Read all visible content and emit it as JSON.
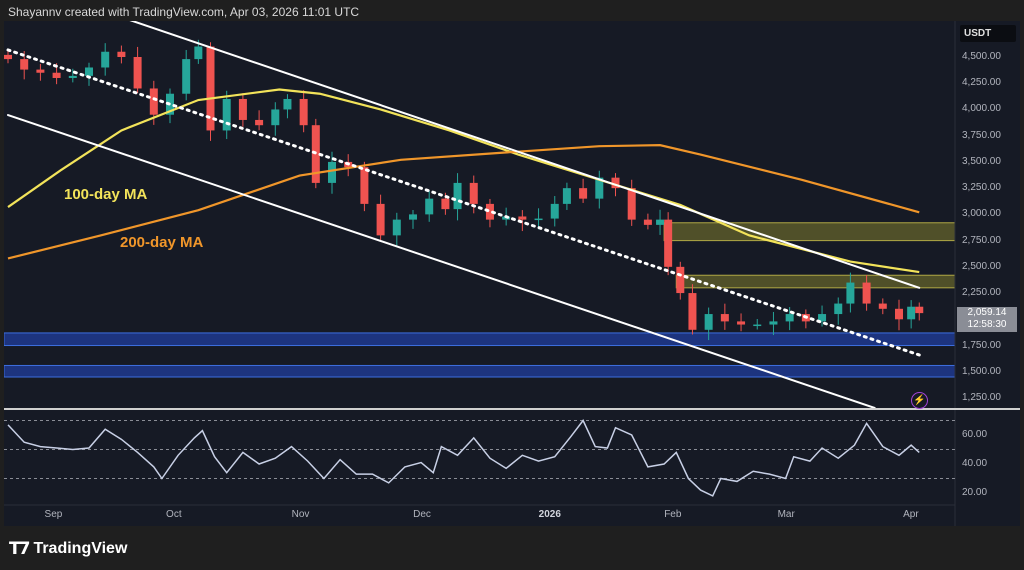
{
  "header": {
    "text": "Shayannv created with TradingView.com, Apr 03, 2026 11:01 UTC"
  },
  "footer": {
    "brand": "TradingView"
  },
  "colors": {
    "background": "#161a25",
    "up": "#26a69a",
    "down": "#ef5350",
    "ma100": "#f2e35a",
    "ma200": "#f0962a",
    "resistance_zone": "#5b5a2a",
    "support_zone": "#1f3a8f",
    "rsi": "#c8d0e6"
  },
  "chart_data": [
    {
      "type": "candlestick",
      "currency": "USDT",
      "last_price": "2,059.14",
      "countdown": "12:58:30",
      "ylim": [
        1150,
        4850
      ],
      "y_ticks": [
        "4,500.00",
        "4,250.00",
        "4,000.00",
        "3,750.00",
        "3,500.00",
        "3,250.00",
        "3,000.00",
        "2,750.00",
        "2,500.00",
        "2,250.00",
        "1,750.00",
        "1,500.00",
        "1,250.00"
      ],
      "y_tick_values": [
        4500,
        4250,
        4000,
        3750,
        3500,
        3250,
        3000,
        2750,
        2500,
        2250,
        1750,
        1500,
        1250
      ],
      "x_ticks": [
        {
          "label": "Sep",
          "date": "2025-09-01"
        },
        {
          "label": "Oct",
          "date": "2025-10-01"
        },
        {
          "label": "Nov",
          "date": "2025-11-01"
        },
        {
          "label": "Dec",
          "date": "2025-12-01"
        },
        {
          "label": "2026",
          "date": "2026-01-01"
        },
        {
          "label": "Feb",
          "date": "2026-02-01"
        },
        {
          "label": "Mar",
          "date": "2026-03-01"
        },
        {
          "label": "Apr",
          "date": "2026-04-01"
        }
      ],
      "xlim": [
        "2025-08-20",
        "2026-04-11"
      ],
      "closes": [
        [
          "2025-08-21",
          4480
        ],
        [
          "2025-08-25",
          4380
        ],
        [
          "2025-08-29",
          4350
        ],
        [
          "2025-09-02",
          4300
        ],
        [
          "2025-09-06",
          4320
        ],
        [
          "2025-09-10",
          4400
        ],
        [
          "2025-09-14",
          4550
        ],
        [
          "2025-09-18",
          4500
        ],
        [
          "2025-09-22",
          4200
        ],
        [
          "2025-09-26",
          3950
        ],
        [
          "2025-09-30",
          4150
        ],
        [
          "2025-10-04",
          4480
        ],
        [
          "2025-10-07",
          4600
        ],
        [
          "2025-10-10",
          3800
        ],
        [
          "2025-10-14",
          4100
        ],
        [
          "2025-10-18",
          3900
        ],
        [
          "2025-10-22",
          3850
        ],
        [
          "2025-10-26",
          4000
        ],
        [
          "2025-10-29",
          4100
        ],
        [
          "2025-11-02",
          3850
        ],
        [
          "2025-11-05",
          3300
        ],
        [
          "2025-11-09",
          3500
        ],
        [
          "2025-11-13",
          3450
        ],
        [
          "2025-11-17",
          3100
        ],
        [
          "2025-11-21",
          2800
        ],
        [
          "2025-11-25",
          2950
        ],
        [
          "2025-11-29",
          3000
        ],
        [
          "2025-12-03",
          3150
        ],
        [
          "2025-12-07",
          3050
        ],
        [
          "2025-12-10",
          3300
        ],
        [
          "2025-12-14",
          3100
        ],
        [
          "2025-12-18",
          2950
        ],
        [
          "2025-12-22",
          2980
        ],
        [
          "2025-12-26",
          2950
        ],
        [
          "2025-12-30",
          2960
        ],
        [
          "2026-01-03",
          3100
        ],
        [
          "2026-01-06",
          3250
        ],
        [
          "2026-01-10",
          3150
        ],
        [
          "2026-01-14",
          3350
        ],
        [
          "2026-01-18",
          3250
        ],
        [
          "2026-01-22",
          2950
        ],
        [
          "2026-01-26",
          2900
        ],
        [
          "2026-01-29",
          2950
        ],
        [
          "2026-01-31",
          2500
        ],
        [
          "2026-02-03",
          2250
        ],
        [
          "2026-02-06",
          1900
        ],
        [
          "2026-02-10",
          2050
        ],
        [
          "2026-02-14",
          1980
        ],
        [
          "2026-02-18",
          1950
        ],
        [
          "2026-02-22",
          1950
        ],
        [
          "2026-02-26",
          1980
        ],
        [
          "2026-03-02",
          2050
        ],
        [
          "2026-03-06",
          1980
        ],
        [
          "2026-03-10",
          2050
        ],
        [
          "2026-03-14",
          2150
        ],
        [
          "2026-03-17",
          2350
        ],
        [
          "2026-03-21",
          2150
        ],
        [
          "2026-03-25",
          2100
        ],
        [
          "2026-03-29",
          2000
        ],
        [
          "2026-04-01",
          2120
        ],
        [
          "2026-04-03",
          2059
        ]
      ],
      "moving_averages": [
        {
          "name": "100-day MA",
          "color": "#f2e35a",
          "points": [
            [
              "2025-08-21",
              3070
            ],
            [
              "2025-09-03",
              3420
            ],
            [
              "2025-09-18",
              3800
            ],
            [
              "2025-10-07",
              4090
            ],
            [
              "2025-10-27",
              4190
            ],
            [
              "2025-11-06",
              4150
            ],
            [
              "2025-11-21",
              4000
            ],
            [
              "2025-12-08",
              3800
            ],
            [
              "2025-12-25",
              3570
            ],
            [
              "2026-01-14",
              3330
            ],
            [
              "2026-02-03",
              3090
            ],
            [
              "2026-02-20",
              2800
            ],
            [
              "2026-03-17",
              2550
            ],
            [
              "2026-04-03",
              2450
            ]
          ]
        },
        {
          "name": "200-day MA",
          "color": "#f0962a",
          "points": [
            [
              "2025-08-21",
              2580
            ],
            [
              "2025-09-13",
              2800
            ],
            [
              "2025-10-07",
              3040
            ],
            [
              "2025-11-01",
              3370
            ],
            [
              "2025-11-26",
              3520
            ],
            [
              "2025-12-20",
              3585
            ],
            [
              "2026-01-14",
              3650
            ],
            [
              "2026-01-29",
              3660
            ],
            [
              "2026-02-08",
              3570
            ],
            [
              "2026-03-05",
              3330
            ],
            [
              "2026-04-03",
              3020
            ]
          ]
        }
      ],
      "trendlines": [
        {
          "style": "solid",
          "points": [
            [
              "2025-09-20",
              4853
            ],
            [
              "2026-04-03",
              2300
            ]
          ]
        },
        {
          "style": "solid",
          "points": [
            [
              "2025-08-21",
              3947
            ],
            [
              "2026-03-23",
              1155
            ]
          ]
        },
        {
          "style": "dotted",
          "points": [
            [
              "2025-08-21",
              4567
            ],
            [
              "2026-04-03",
              1660
            ]
          ]
        }
      ],
      "zones": [
        {
          "kind": "resistance",
          "from": 2750,
          "to": 2920,
          "start": "2026-01-30"
        },
        {
          "kind": "resistance",
          "from": 2300,
          "to": 2420,
          "start": "2026-02-02"
        },
        {
          "kind": "support",
          "from": 1750,
          "to": 1870,
          "start": "2025-08-20"
        },
        {
          "kind": "support",
          "from": 1450,
          "to": 1560,
          "start": "2025-08-20"
        }
      ]
    },
    {
      "type": "line",
      "indicator": "RSI",
      "ylim": [
        14,
        76
      ],
      "y_ticks": [
        "60.00",
        "40.00",
        "20.00"
      ],
      "y_tick_values": [
        60,
        40,
        20
      ],
      "bands": [
        70,
        50,
        30
      ],
      "values": [
        [
          "2025-08-21",
          67
        ],
        [
          "2025-08-25",
          55
        ],
        [
          "2025-08-29",
          52
        ],
        [
          "2025-09-02",
          51
        ],
        [
          "2025-09-06",
          50
        ],
        [
          "2025-09-10",
          51
        ],
        [
          "2025-09-14",
          64
        ],
        [
          "2025-09-18",
          57
        ],
        [
          "2025-09-22",
          48
        ],
        [
          "2025-09-26",
          38
        ],
        [
          "2025-09-28",
          30
        ],
        [
          "2025-10-02",
          46
        ],
        [
          "2025-10-06",
          58
        ],
        [
          "2025-10-08",
          63
        ],
        [
          "2025-10-11",
          45
        ],
        [
          "2025-10-14",
          34
        ],
        [
          "2025-10-18",
          48
        ],
        [
          "2025-10-22",
          40
        ],
        [
          "2025-10-26",
          44
        ],
        [
          "2025-10-30",
          52
        ],
        [
          "2025-11-03",
          42
        ],
        [
          "2025-11-07",
          30
        ],
        [
          "2025-11-11",
          43
        ],
        [
          "2025-11-15",
          33
        ],
        [
          "2025-11-19",
          33
        ],
        [
          "2025-11-23",
          27
        ],
        [
          "2025-11-27",
          38
        ],
        [
          "2025-12-01",
          41
        ],
        [
          "2025-12-04",
          34
        ],
        [
          "2025-12-06",
          52
        ],
        [
          "2025-12-10",
          46
        ],
        [
          "2025-12-14",
          58
        ],
        [
          "2025-12-18",
          44
        ],
        [
          "2025-12-22",
          37
        ],
        [
          "2025-12-26",
          46
        ],
        [
          "2025-12-30",
          42
        ],
        [
          "2026-01-03",
          45
        ],
        [
          "2026-01-07",
          59
        ],
        [
          "2026-01-10",
          70
        ],
        [
          "2026-01-13",
          52
        ],
        [
          "2026-01-16",
          51
        ],
        [
          "2026-01-18",
          65
        ],
        [
          "2026-01-22",
          60
        ],
        [
          "2026-01-26",
          38
        ],
        [
          "2026-01-30",
          40
        ],
        [
          "2026-02-02",
          48
        ],
        [
          "2026-02-05",
          30
        ],
        [
          "2026-02-08",
          22
        ],
        [
          "2026-02-11",
          18
        ],
        [
          "2026-02-13",
          30
        ],
        [
          "2026-02-17",
          28
        ],
        [
          "2026-02-21",
          35
        ],
        [
          "2026-02-25",
          33
        ],
        [
          "2026-03-01",
          30
        ],
        [
          "2026-03-03",
          45
        ],
        [
          "2026-03-07",
          42
        ],
        [
          "2026-03-10",
          51
        ],
        [
          "2026-03-14",
          44
        ],
        [
          "2026-03-18",
          53
        ],
        [
          "2026-03-21",
          68
        ],
        [
          "2026-03-25",
          52
        ],
        [
          "2026-03-29",
          46
        ],
        [
          "2026-04-01",
          53
        ],
        [
          "2026-04-03",
          48
        ]
      ]
    }
  ]
}
